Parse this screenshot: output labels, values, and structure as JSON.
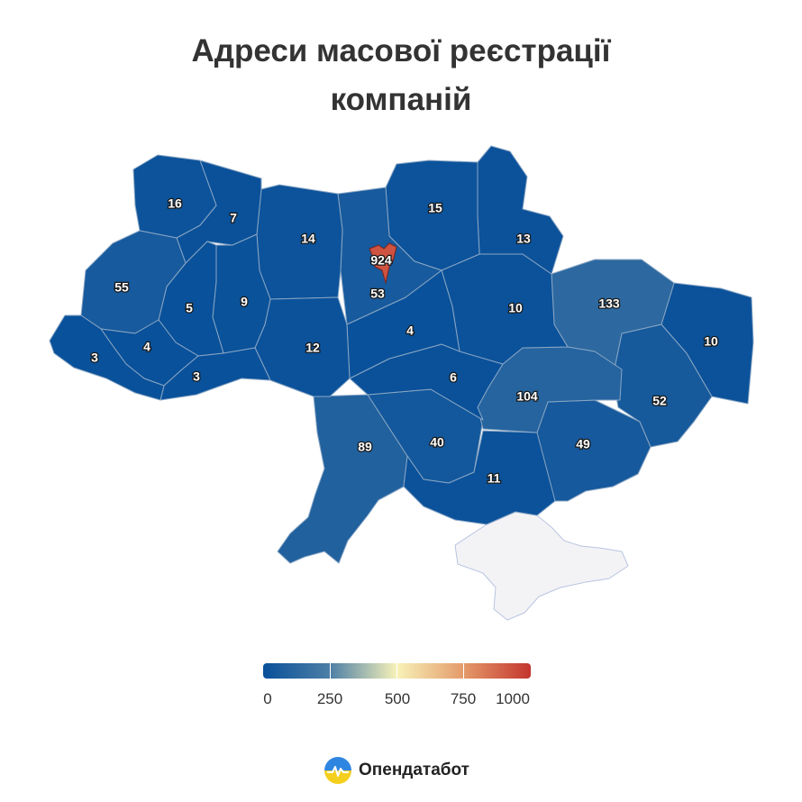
{
  "title": {
    "line1": "Адреси масової реєстрації",
    "line2": "компаній"
  },
  "colors": {
    "scale_low": "#08509a",
    "scale_mid_low": "#4d7fa6",
    "scale_mid": "#f7f2b8",
    "scale_mid_high": "#e49a6a",
    "scale_high": "#c4342e",
    "no_data": "#f3f3f6"
  },
  "regions": [
    {
      "id": "volyn",
      "value": "16"
    },
    {
      "id": "rivne",
      "value": "7"
    },
    {
      "id": "zhytomyr",
      "value": "14"
    },
    {
      "id": "kyiv-oblast",
      "value": "53"
    },
    {
      "id": "kyiv-city",
      "value": "924"
    },
    {
      "id": "chernihiv",
      "value": "15"
    },
    {
      "id": "sumy",
      "value": "13"
    },
    {
      "id": "lviv",
      "value": "55"
    },
    {
      "id": "ternopil",
      "value": "5"
    },
    {
      "id": "khmelnytskyi",
      "value": "9"
    },
    {
      "id": "zakarpattia",
      "value": "3"
    },
    {
      "id": "ivano-frankivsk",
      "value": "4"
    },
    {
      "id": "chernivtsi",
      "value": "3"
    },
    {
      "id": "vinnytsia",
      "value": "12"
    },
    {
      "id": "cherkasy",
      "value": "4"
    },
    {
      "id": "poltava",
      "value": "10"
    },
    {
      "id": "kharkiv",
      "value": "133"
    },
    {
      "id": "luhansk",
      "value": "10"
    },
    {
      "id": "kirovohrad",
      "value": "6"
    },
    {
      "id": "dnipropetrovsk",
      "value": "104"
    },
    {
      "id": "donetsk",
      "value": "52"
    },
    {
      "id": "odesa",
      "value": "89"
    },
    {
      "id": "mykolaiv",
      "value": "40"
    },
    {
      "id": "kherson",
      "value": "11"
    },
    {
      "id": "zaporizhzhia",
      "value": "49"
    }
  ],
  "legend": {
    "labels": [
      "0",
      "250",
      "500",
      "750",
      "1000"
    ]
  },
  "brand": {
    "name": "Опендатабот",
    "icon": "opendatabot-logo-icon"
  }
}
